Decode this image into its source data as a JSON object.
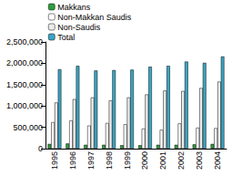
{
  "chart_data": {
    "type": "bar",
    "categories": [
      "1995",
      "1996",
      "1997",
      "1998",
      "1999",
      "2000",
      "2001",
      "2002",
      "2003",
      "2004"
    ],
    "series": [
      {
        "name": "Makkans",
        "color": "#2e9e3e",
        "values": [
          110000,
          120000,
          90000,
          90000,
          80000,
          80000,
          90000,
          90000,
          100000,
          110000
        ]
      },
      {
        "name": "Non-Makkan Saudis",
        "color": "#ffffff",
        "values": [
          620000,
          660000,
          540000,
          600000,
          570000,
          470000,
          440000,
          590000,
          490000,
          480000
        ]
      },
      {
        "name": "Non-Saudis",
        "color": "#ececec",
        "values": [
          1080000,
          1160000,
          1200000,
          1130000,
          1200000,
          1270000,
          1360000,
          1350000,
          1420000,
          1570000
        ]
      },
      {
        "name": "Total",
        "color": "#3aa6c4",
        "values": [
          1860000,
          1940000,
          1830000,
          1840000,
          1850000,
          1920000,
          1940000,
          2040000,
          2010000,
          2160000
        ]
      }
    ],
    "ylim": [
      0,
      2500000
    ],
    "yticks": [
      0,
      {
        "value": 500000,
        "label": "500,000"
      },
      {
        "value": 1000000,
        "label": "1,000,000"
      },
      {
        "value": 1500000,
        "label": "1,500,000"
      },
      {
        "value": 2000000,
        "label": "2,000,000"
      },
      {
        "value": 2500000,
        "label": "2,500,000"
      }
    ],
    "grid": false,
    "legend": "upper left"
  }
}
